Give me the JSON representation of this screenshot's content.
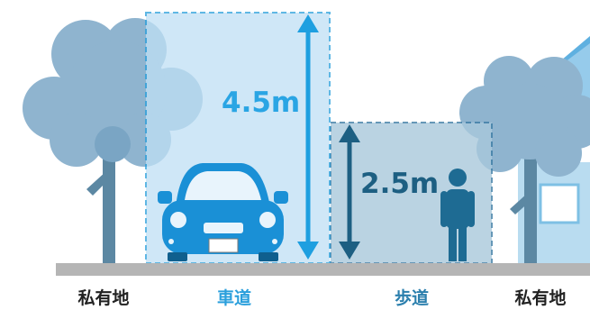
{
  "labels": {
    "private_left": "私有地",
    "roadway": "車道",
    "sidewalk": "歩道",
    "private_right": "私有地"
  },
  "dimensions": {
    "roadway_height": "4.5m",
    "sidewalk_height": "2.5m"
  },
  "colors": {
    "tree_light": "#8fb4cf",
    "tree_mid": "#7aa5c4",
    "trunk": "#5c88a3",
    "ground": "#b5b5b5",
    "roadway_zone": "#bfe0f5",
    "roadway_border": "#2a9fdc",
    "sidewalk_zone": "#a9c9dc",
    "sidewalk_border": "#3f7ea6",
    "car": "#1a90d6",
    "person": "#1e6b93",
    "roadway_arrow": "#1e9fe0",
    "sidewalk_arrow": "#1d5f82",
    "house": "#5fb0e0",
    "house_wall": "#b9dcf0",
    "label_dark": "#222222",
    "label_blue": "#2a9fdc",
    "label_sidewalk": "#2b7fad"
  },
  "icons": [
    "tree-icon",
    "car-icon",
    "person-icon",
    "house-icon",
    "double-arrow-icon"
  ]
}
